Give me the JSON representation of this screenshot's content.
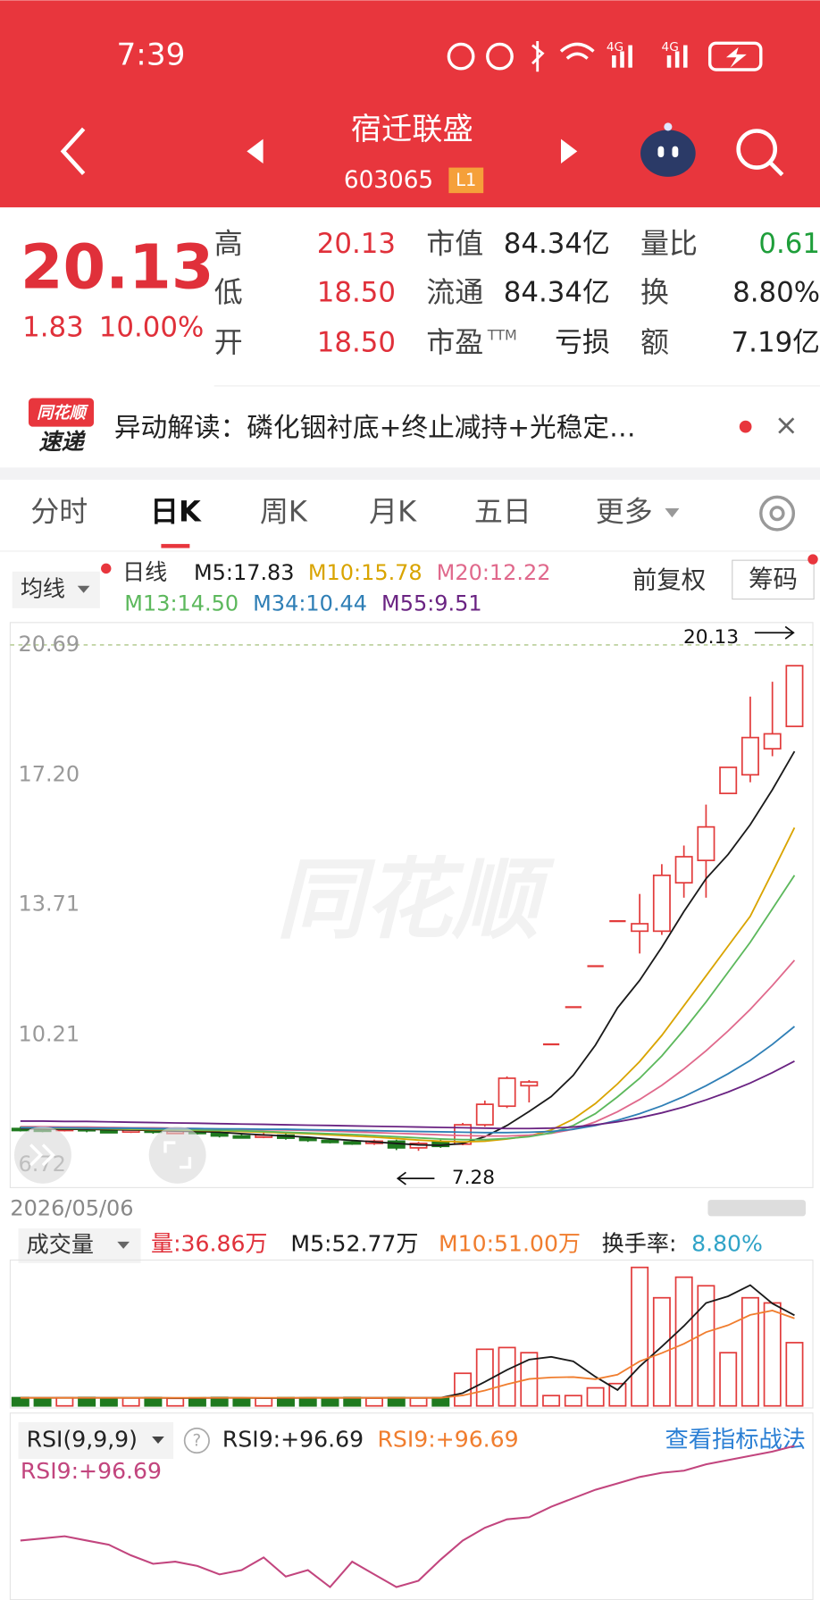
{
  "status_bar": {
    "time": "7:39",
    "network": [
      "4G",
      "4G"
    ]
  },
  "header": {
    "title": "宿迁联盛",
    "code": "603065",
    "badge": "L1"
  },
  "quote": {
    "price": "20.13",
    "change": "1.83",
    "change_pct": "10.00%",
    "stats": [
      [
        {
          "label": "高",
          "value": "20.13"
        },
        {
          "label": "市值",
          "value": "84.34亿"
        },
        {
          "label": "量比",
          "value": "0.61"
        }
      ],
      [
        {
          "label": "低",
          "value": "18.50"
        },
        {
          "label": "流通",
          "value": "84.34亿"
        },
        {
          "label": "换",
          "value": "8.80%"
        }
      ],
      [
        {
          "label": "开",
          "value": "18.50"
        },
        {
          "label": "市盈",
          "sup": "TTM",
          "value": "亏损"
        },
        {
          "label": "额",
          "value": "7.19亿"
        }
      ]
    ]
  },
  "news": {
    "logo": [
      "同花顺",
      "速递"
    ],
    "text": "异动解读：磷化铟衬底+终止减持+光稳定…",
    "close": "×"
  },
  "tabs": {
    "items": [
      "分时",
      "日K",
      "周K",
      "月K",
      "五日",
      "更多"
    ],
    "active": 1
  },
  "kline_bar": {
    "ma_select": "均线",
    "period": "日线",
    "adjust": "前复权",
    "chips": "筹码"
  },
  "watermark": "同花顺",
  "date": "2026/05/06",
  "chart_data": [
    {
      "type": "candlestick",
      "ylim": [
        6.14,
        21.29
      ],
      "yticks": [
        20.69,
        {
          "value": 17.2,
          "label": "17.20"
        },
        13.71,
        10.21,
        6.72
      ],
      "grid": false,
      "up_color": "#e23b3b",
      "down_color": "#1f7a1f",
      "open": [
        7.7,
        7.68,
        7.66,
        7.7,
        7.64,
        7.62,
        7.66,
        7.6,
        7.62,
        7.58,
        7.5,
        7.48,
        7.52,
        7.44,
        7.38,
        7.34,
        7.3,
        7.36,
        7.18,
        7.34,
        7.28,
        7.8,
        8.3,
        8.85,
        9.96,
        10.96,
        12.06,
        13.27,
        13.0,
        13.0,
        14.3,
        14.9,
        16.7,
        17.2,
        17.9,
        18.5
      ],
      "high": [
        7.75,
        7.72,
        7.74,
        7.74,
        7.68,
        7.7,
        7.7,
        7.66,
        7.66,
        7.62,
        7.56,
        7.58,
        7.56,
        7.48,
        7.42,
        7.38,
        7.4,
        7.4,
        7.34,
        7.4,
        7.85,
        8.45,
        9.1,
        9.0,
        9.96,
        10.96,
        12.06,
        13.27,
        14.0,
        14.8,
        15.3,
        16.4,
        17.4,
        19.3,
        19.7,
        20.13
      ],
      "low": [
        7.62,
        7.6,
        7.62,
        7.6,
        7.58,
        7.58,
        7.56,
        7.55,
        7.54,
        7.46,
        7.44,
        7.44,
        7.4,
        7.34,
        7.3,
        7.26,
        7.26,
        7.12,
        7.1,
        7.18,
        7.25,
        7.75,
        8.25,
        8.4,
        9.96,
        10.96,
        12.06,
        13.27,
        12.4,
        12.9,
        13.9,
        13.9,
        16.7,
        17.0,
        17.7,
        18.5
      ],
      "close": [
        7.68,
        7.66,
        7.7,
        7.64,
        7.62,
        7.66,
        7.6,
        7.62,
        7.58,
        7.5,
        7.48,
        7.52,
        7.44,
        7.38,
        7.34,
        7.3,
        7.36,
        7.18,
        7.3,
        7.22,
        7.8,
        8.35,
        9.05,
        8.95,
        9.96,
        10.96,
        12.06,
        13.27,
        13.2,
        14.5,
        15.0,
        15.8,
        17.4,
        18.2,
        18.3,
        20.13
      ],
      "annotations": [
        "20.13",
        "7.28"
      ],
      "series": [
        {
          "name": "M5:17.83",
          "color": "#1a1a1a",
          "values": [
            7.7,
            7.69,
            7.68,
            7.68,
            7.67,
            7.66,
            7.65,
            7.63,
            7.62,
            7.6,
            7.56,
            7.53,
            7.5,
            7.47,
            7.42,
            7.38,
            7.34,
            7.3,
            7.26,
            7.25,
            7.3,
            7.48,
            7.78,
            8.16,
            8.56,
            9.13,
            9.94,
            10.94,
            11.68,
            12.57,
            13.53,
            14.41,
            15.06,
            15.86,
            16.8,
            17.83
          ]
        },
        {
          "name": "M10:15.78",
          "color": "#d9a400",
          "values": [
            7.72,
            7.71,
            7.7,
            7.7,
            7.69,
            7.68,
            7.67,
            7.66,
            7.65,
            7.64,
            7.62,
            7.6,
            7.58,
            7.56,
            7.53,
            7.5,
            7.47,
            7.43,
            7.39,
            7.36,
            7.34,
            7.36,
            7.42,
            7.5,
            7.66,
            7.95,
            8.37,
            8.9,
            9.5,
            10.2,
            11.0,
            11.8,
            12.6,
            13.4,
            14.58,
            15.78
          ]
        },
        {
          "name": "M20:12.22",
          "color": "#e0698c",
          "values": [
            7.75,
            7.75,
            7.74,
            7.74,
            7.73,
            7.72,
            7.72,
            7.71,
            7.7,
            7.69,
            7.68,
            7.67,
            7.66,
            7.65,
            7.63,
            7.61,
            7.59,
            7.57,
            7.55,
            7.53,
            7.51,
            7.5,
            7.5,
            7.52,
            7.57,
            7.68,
            7.88,
            8.15,
            8.48,
            8.86,
            9.3,
            9.79,
            10.32,
            10.9,
            11.54,
            12.22
          ]
        },
        {
          "name": "M13:14.50",
          "color": "#5cb85c",
          "values": [
            7.73,
            7.72,
            7.71,
            7.71,
            7.7,
            7.69,
            7.68,
            7.67,
            7.66,
            7.65,
            7.64,
            7.62,
            7.6,
            7.58,
            7.56,
            7.54,
            7.51,
            7.48,
            7.45,
            7.42,
            7.4,
            7.4,
            7.43,
            7.48,
            7.58,
            7.78,
            8.1,
            8.55,
            9.05,
            9.65,
            10.35,
            11.1,
            11.9,
            12.7,
            13.6,
            14.5
          ]
        },
        {
          "name": "M34:10.44",
          "color": "#2f7fb6",
          "values": [
            7.72,
            7.72,
            7.72,
            7.71,
            7.71,
            7.71,
            7.7,
            7.7,
            7.7,
            7.69,
            7.69,
            7.68,
            7.68,
            7.67,
            7.66,
            7.65,
            7.64,
            7.63,
            7.62,
            7.61,
            7.6,
            7.59,
            7.59,
            7.6,
            7.62,
            7.68,
            7.78,
            7.92,
            8.1,
            8.31,
            8.56,
            8.85,
            9.17,
            9.53,
            9.96,
            10.44
          ]
        },
        {
          "name": "M55:9.51",
          "color": "#6a2382",
          "values": [
            7.9,
            7.9,
            7.89,
            7.89,
            7.88,
            7.87,
            7.86,
            7.85,
            7.84,
            7.83,
            7.82,
            7.81,
            7.8,
            7.79,
            7.78,
            7.77,
            7.76,
            7.75,
            7.74,
            7.73,
            7.72,
            7.71,
            7.7,
            7.7,
            7.71,
            7.74,
            7.8,
            7.88,
            7.99,
            8.12,
            8.28,
            8.47,
            8.68,
            8.92,
            9.2,
            9.51
          ]
        }
      ]
    },
    {
      "type": "bar",
      "title": "成交量",
      "volume_label": "量:36.86万",
      "turnover_label": "换手率:",
      "turnover_value": "8.80%",
      "ylim": [
        0,
        85
      ],
      "values": [
        4.8,
        4.6,
        4.7,
        4.9,
        4.5,
        4.6,
        4.8,
        4.4,
        4.7,
        4.9,
        4.6,
        4.5,
        4.8,
        4.7,
        4.6,
        4.9,
        4.5,
        4.8,
        4.6,
        4.7,
        19,
        33,
        34,
        31,
        6,
        6,
        10.5,
        13,
        80.7,
        63,
        75,
        70,
        31,
        63,
        60,
        36.86
      ],
      "series": [
        {
          "name": "M5:52.77万",
          "color": "#1a1a1a",
          "values": [
            4.7,
            4.7,
            4.7,
            4.7,
            4.7,
            4.7,
            4.7,
            4.6,
            4.6,
            4.7,
            4.7,
            4.6,
            4.6,
            4.7,
            4.7,
            4.7,
            4.7,
            4.7,
            4.7,
            4.7,
            7.5,
            14,
            21,
            27,
            28.6,
            26,
            17,
            9.3,
            23,
            34.6,
            46.6,
            60,
            63.9,
            70.4,
            59.7,
            52.77
          ]
        },
        {
          "name": "M10:51.00万",
          "color": "#f07d2e",
          "values": [
            4.7,
            4.7,
            4.7,
            4.7,
            4.7,
            4.7,
            4.7,
            4.7,
            4.7,
            4.7,
            4.7,
            4.7,
            4.7,
            4.7,
            4.7,
            4.7,
            4.7,
            4.7,
            4.7,
            4.7,
            6.1,
            9.0,
            12.6,
            15.7,
            16.6,
            16.8,
            15.6,
            18.2,
            26.0,
            30.8,
            36.2,
            43,
            47,
            53,
            55.6,
            51.0
          ]
        }
      ]
    },
    {
      "type": "line",
      "title": "RSI(9,9,9)",
      "help": "?",
      "header_labels": [
        "RSI9:+96.69",
        "RSI9:+96.69"
      ],
      "link": "查看指标战法",
      "ylim": [
        25,
        105
      ],
      "series": [
        {
          "name": "RSI9:+96.69",
          "color": "#c2457e",
          "values": [
            52,
            53,
            54,
            52,
            50,
            45,
            41,
            42,
            40,
            36,
            38,
            44,
            35,
            38,
            30,
            42,
            36,
            30,
            33,
            43,
            52,
            58,
            62,
            63,
            68,
            72,
            76,
            79,
            82,
            84,
            85,
            88,
            90,
            92,
            94,
            96.69
          ]
        }
      ]
    }
  ]
}
